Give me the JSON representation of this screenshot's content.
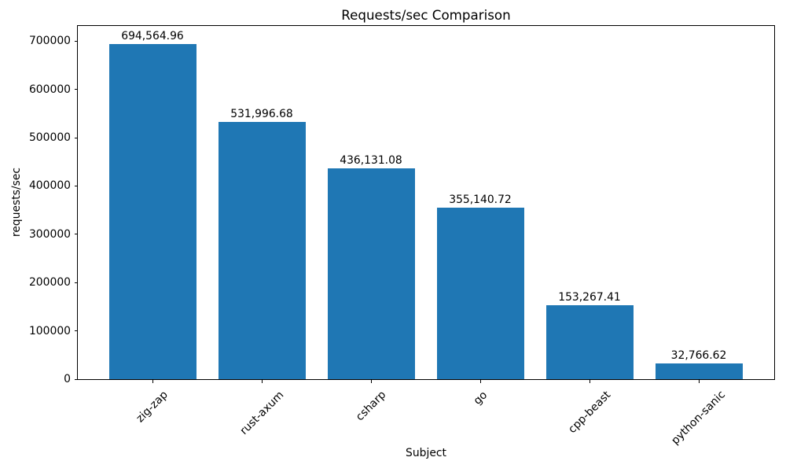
{
  "chart_data": {
    "type": "bar",
    "title": "Requests/sec Comparison",
    "xlabel": "Subject",
    "ylabel": "requests/sec",
    "categories": [
      "zig-zap",
      "rust-axum",
      "csharp",
      "go",
      "cpp-beast",
      "python-sanic"
    ],
    "values": [
      694564.96,
      531996.68,
      436131.08,
      355140.72,
      153267.41,
      32766.62
    ],
    "value_labels": [
      "694,564.96",
      "531,996.68",
      "436,131.08",
      "355,140.72",
      "153,267.41",
      "32,766.62"
    ],
    "bar_color": "#1f77b4",
    "ylim": [
      0,
      733000
    ],
    "yticks": [
      0,
      100000,
      200000,
      300000,
      400000,
      500000,
      600000,
      700000
    ],
    "ytick_labels": [
      "0",
      "100000",
      "200000",
      "300000",
      "400000",
      "500000",
      "600000",
      "700000"
    ],
    "xtick_rotation_deg": 45,
    "grid": false,
    "legend": null
  }
}
